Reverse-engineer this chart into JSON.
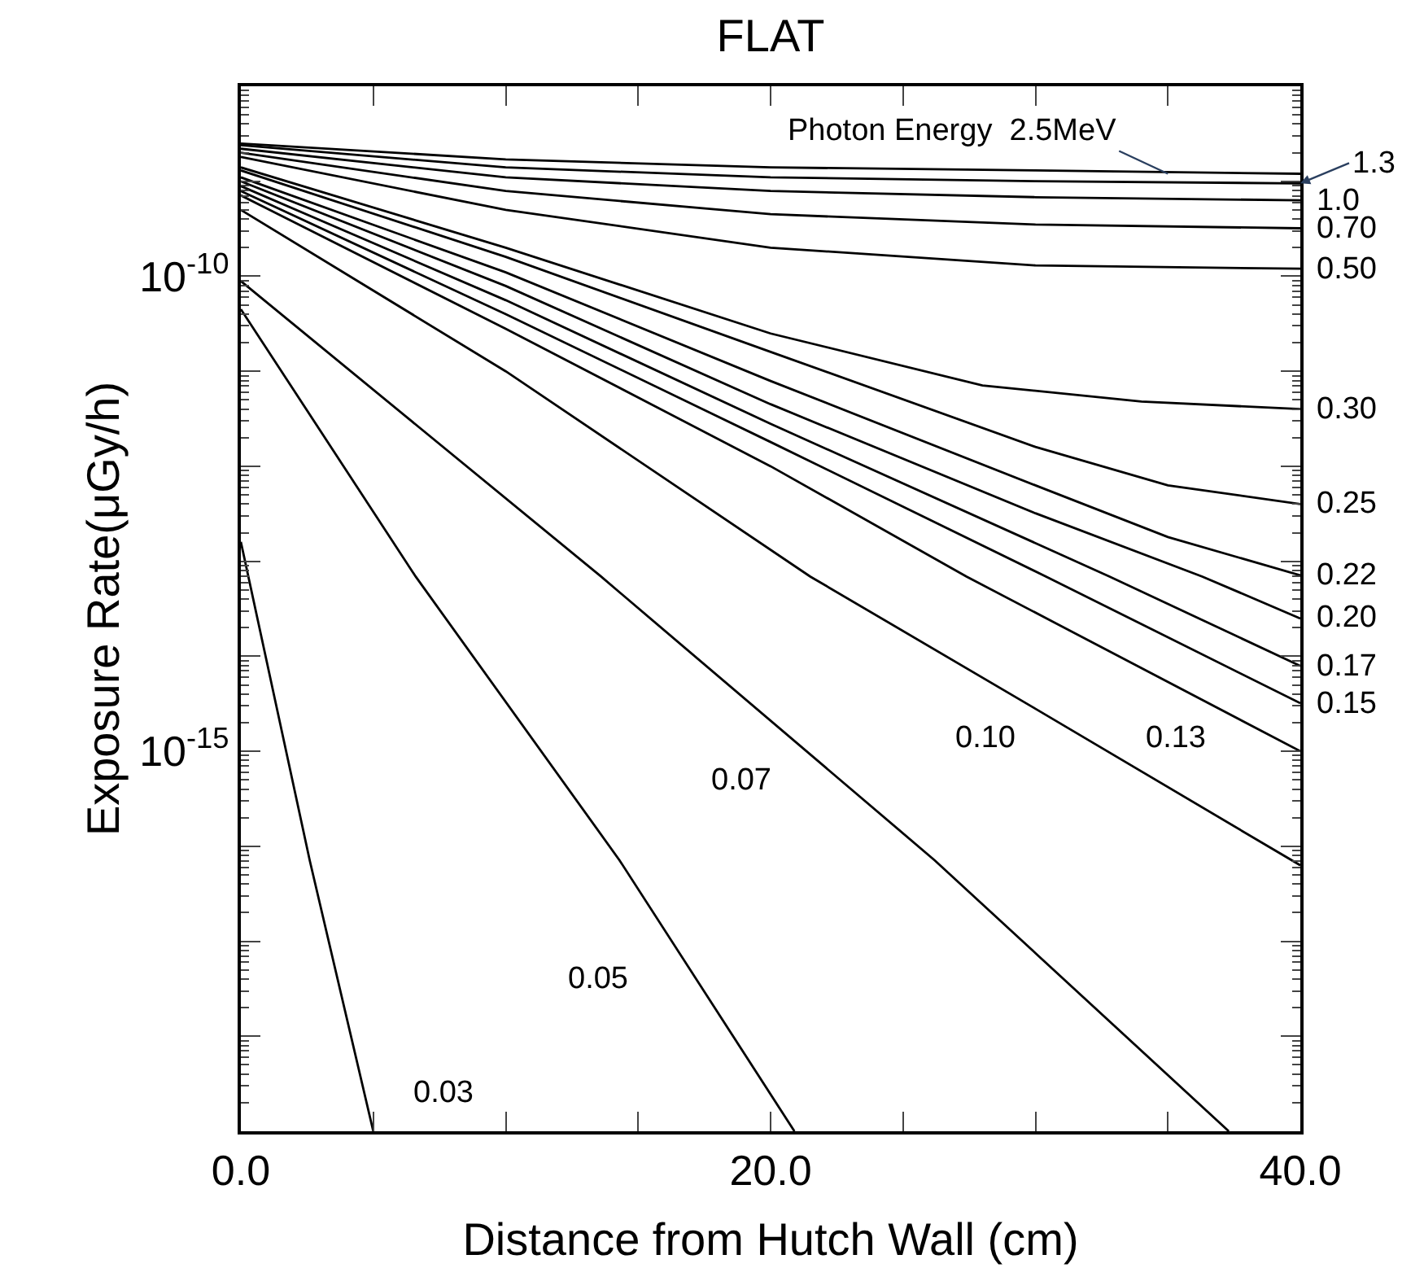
{
  "chart_data": {
    "type": "line",
    "title": "FLAT",
    "xlabel": "Distance from Hutch Wall (cm)",
    "ylabel": "Exposure Rate(μGy/h)",
    "log": "y",
    "marker": "none",
    "line_style": "solid",
    "xlim": [
      0,
      40
    ],
    "ylim": [
      1e-19,
      1e-08
    ],
    "xticks": [
      {
        "value": 0,
        "label": "0.0"
      },
      {
        "value": 5,
        "label": null
      },
      {
        "value": 10,
        "label": null
      },
      {
        "value": 15,
        "label": null
      },
      {
        "value": 20,
        "label": "20.0"
      },
      {
        "value": 25,
        "label": null
      },
      {
        "value": 30,
        "label": null
      },
      {
        "value": 35,
        "label": null
      },
      {
        "value": 40,
        "label": "40.0"
      }
    ],
    "yticks": [
      {
        "value": 1e-08,
        "label": null
      },
      {
        "value": 1e-09,
        "label": null
      },
      {
        "value": 1e-10,
        "label": "10$^{-10}$"
      },
      {
        "value": 1e-11,
        "label": null
      },
      {
        "value": 1e-12,
        "label": null
      },
      {
        "value": 1e-13,
        "label": null
      },
      {
        "value": 1e-14,
        "label": null
      },
      {
        "value": 1e-15,
        "label": "10$^{-15}$"
      },
      {
        "value": 1e-16,
        "label": null
      },
      {
        "value": 1e-17,
        "label": null
      },
      {
        "value": 1e-18,
        "label": null
      },
      {
        "value": 1e-19,
        "label": null
      }
    ],
    "series": [
      {
        "color": "#000000",
        "x": [
          0,
          10,
          20,
          30,
          40
        ],
        "values": [
          2.5e-09,
          1.7e-09,
          1.4e-09,
          1.3e-09,
          1.2e-09
        ]
      },
      {
        "color": "#000000",
        "x": [
          0,
          10,
          20,
          30,
          40
        ],
        "values": [
          2.4e-09,
          1.4e-09,
          1.1e-09,
          1e-09,
          9.5e-10
        ]
      },
      {
        "color": "#000000",
        "x": [
          0,
          10,
          20,
          30,
          40
        ],
        "values": [
          2.2e-09,
          1.1e-09,
          7.9e-10,
          6.8e-10,
          6.3e-10
        ]
      },
      {
        "color": "#000000",
        "x": [
          0,
          10,
          20,
          30,
          40
        ],
        "values": [
          2e-09,
          7.9e-10,
          4.5e-10,
          3.5e-10,
          3.2e-10
        ]
      },
      {
        "color": "#000000",
        "x": [
          0,
          10,
          20,
          30,
          40
        ],
        "values": [
          1.8e-09,
          5e-10,
          2e-10,
          1.3e-10,
          1.2e-10
        ]
      },
      {
        "color": "#000000",
        "x": [
          0,
          10,
          20,
          28,
          34,
          40
        ],
        "values": [
          1.4e-09,
          2e-10,
          2.5e-11,
          7.1e-12,
          4.8e-12,
          4e-12
        ]
      },
      {
        "color": "#000000",
        "x": [
          0,
          10,
          20,
          30,
          35,
          40
        ],
        "values": [
          1.3e-09,
          1.6e-10,
          1.6e-11,
          1.6e-12,
          6.3e-13,
          4e-13
        ]
      },
      {
        "color": "#000000",
        "x": [
          0,
          10,
          20,
          30,
          35,
          40
        ],
        "values": [
          1.1e-09,
          1.1e-10,
          7.9e-12,
          6.3e-13,
          1.8e-13,
          7.1e-14
        ]
      },
      {
        "color": "#000000",
        "x": [
          0,
          10,
          20,
          30,
          36.3,
          40
        ],
        "values": [
          1e-09,
          7.9e-11,
          4.5e-12,
          3.2e-13,
          6.9e-14,
          2.5e-14
        ]
      },
      {
        "color": "#000000",
        "x": [
          0,
          10,
          20,
          32.8,
          40
        ],
        "values": [
          8.9e-10,
          5.6e-11,
          2.8e-12,
          6.9e-14,
          7.9e-15
        ]
      },
      {
        "color": "#000000",
        "x": [
          0,
          10,
          20,
          30.4,
          40
        ],
        "values": [
          7.9e-10,
          4e-11,
          1.8e-12,
          6.9e-14,
          3.2e-15
        ]
      },
      {
        "color": "#000000",
        "x": [
          0,
          10,
          20,
          27.4,
          40
        ],
        "values": [
          7.1e-10,
          2.8e-11,
          1e-12,
          6.9e-14,
          1e-15
        ]
      },
      {
        "color": "#000000",
        "x": [
          0,
          10,
          21.5,
          30,
          40
        ],
        "values": [
          5e-10,
          1e-11,
          6.9e-14,
          2.8e-15,
          6.3e-17
        ]
      },
      {
        "color": "#000000",
        "x": [
          0,
          13.6,
          26.2,
          37.3
        ],
        "values": [
          8.9e-11,
          6.9e-14,
          7.1e-17,
          1e-19
        ]
      },
      {
        "color": "#000000",
        "x": [
          0,
          6.6,
          14.3,
          20.9
        ],
        "values": [
          4.5e-11,
          6.9e-14,
          7.1e-17,
          1e-19
        ]
      },
      {
        "color": "#000000",
        "x": [
          0,
          2.6,
          5.0
        ],
        "values": [
          1.6e-13,
          7.1e-17,
          1e-19
        ]
      }
    ],
    "annotations": [
      {
        "text": "Photon Energy  2.5MeV",
        "x": 35,
        "y": 1.2e-09
      },
      {
        "text": "1.3",
        "x": 40,
        "y": 9.5e-10
      },
      {
        "text": "1.0",
        "x": 40,
        "y": 6.3e-10
      },
      {
        "text": "0.70",
        "x": 40,
        "y": 3.2e-10
      },
      {
        "text": "0.50",
        "x": 40,
        "y": 1.2e-10
      },
      {
        "text": "0.30",
        "x": 40,
        "y": 4e-12
      },
      {
        "text": "0.25",
        "x": 40,
        "y": 4e-13
      },
      {
        "text": "0.22",
        "x": 40,
        "y": 7.1e-14
      },
      {
        "text": "0.20",
        "x": 40,
        "y": 2.5e-14
      },
      {
        "text": "0.17",
        "x": 40,
        "y": 7.9e-15
      },
      {
        "text": "0.15",
        "x": 40,
        "y": 3.2e-15
      },
      {
        "text": "0.13",
        "x": 39,
        "y": 1.4e-15
      },
      {
        "text": "0.10",
        "x": 31.8,
        "y": 1.4e-15
      },
      {
        "text": "0.07",
        "x": 22.6,
        "y": 5e-16
      },
      {
        "text": "0.05",
        "x": 17.2,
        "y": 4e-18
      },
      {
        "text": "0.03",
        "x": 4.7,
        "y": 2.5e-19
      }
    ]
  }
}
